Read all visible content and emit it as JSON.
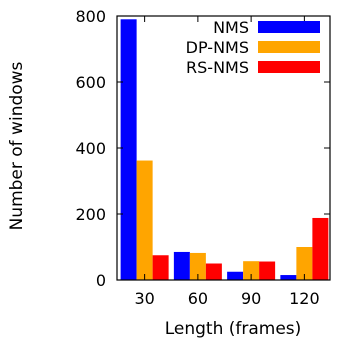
{
  "chart_data": {
    "type": "bar",
    "title": "",
    "xlabel": "Length (frames)",
    "ylabel": "Number of windows",
    "categories": [
      "30",
      "60",
      "90",
      "120"
    ],
    "ylim": [
      0,
      800
    ],
    "yticks": [
      0,
      200,
      400,
      600,
      800
    ],
    "grid": false,
    "legend_position": "top-right",
    "series": [
      {
        "name": "NMS",
        "color": "#0000ff",
        "values": [
          790,
          85,
          25,
          15
        ]
      },
      {
        "name": "DP-NMS",
        "color": "#ffa500",
        "values": [
          362,
          82,
          57,
          100
        ]
      },
      {
        "name": "RS-NMS",
        "color": "#ff0000",
        "values": [
          75,
          50,
          56,
          188
        ]
      }
    ]
  }
}
